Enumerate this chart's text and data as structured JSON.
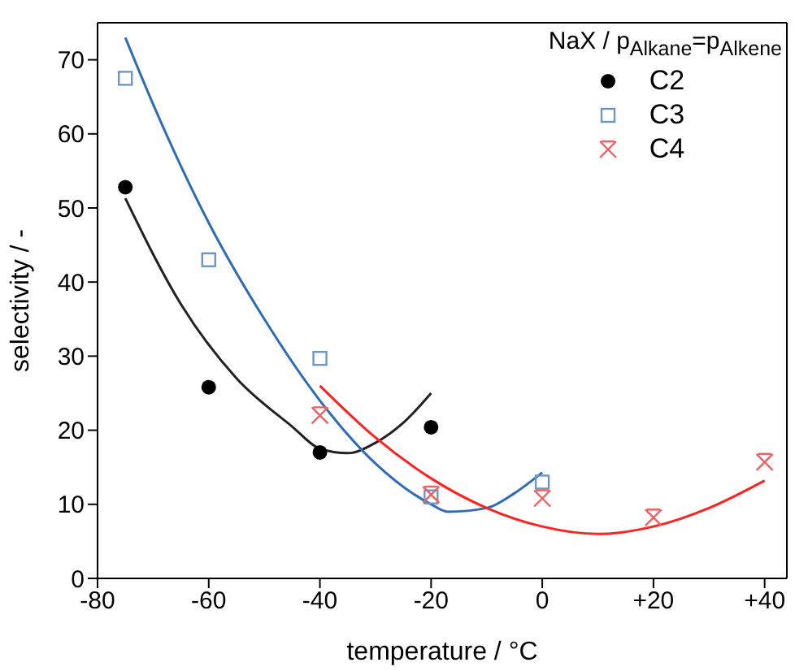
{
  "chart_data": {
    "type": "scatter",
    "xlabel": "temperature / °C",
    "ylabel": "selectivity / -",
    "legend_title": "NaX / p$_{Alkane}$=p$_{Alkene}$",
    "legend": "top right",
    "grid": false,
    "xlim": [
      -80,
      44
    ],
    "xticks": [
      -80,
      -60,
      -40,
      -20,
      0,
      {
        "value": 20,
        "label": "+20"
      },
      {
        "value": 40,
        "label": "+40"
      }
    ],
    "ylim": [
      0,
      75
    ],
    "yticks": [
      0,
      10,
      20,
      30,
      40,
      50,
      60,
      70
    ],
    "series": [
      {
        "name": "C2",
        "marker": "circle",
        "color": "#000000",
        "x": [
          -75,
          -60,
          -40,
          -20
        ],
        "values": [
          52.8,
          25.8,
          17,
          20.4
        ]
      },
      {
        "name": "C3",
        "marker": "square",
        "color": "#6d95c8",
        "x": [
          -75,
          -60,
          -40,
          -20,
          0
        ],
        "values": [
          67.5,
          43,
          29.7,
          11,
          13
        ]
      },
      {
        "name": "C4",
        "marker": "cross",
        "color": "#f06060",
        "x": [
          -40,
          -20,
          0,
          20,
          40
        ],
        "values": [
          22,
          11.3,
          10.8,
          8.2,
          15.7
        ]
      },
      {
        "type": "line",
        "marker": "none",
        "color": "#222222",
        "x": [
          -75,
          -65,
          -55,
          -45,
          -40,
          -35,
          -30,
          -25,
          -20
        ],
        "values": [
          51.3,
          37,
          27,
          20.5,
          17.5,
          16.9,
          18.3,
          21,
          25
        ]
      },
      {
        "type": "line",
        "marker": "none",
        "color": "#2e6db5",
        "x": [
          -75,
          -70,
          -60,
          -50,
          -40,
          -30,
          -20,
          -17,
          -10,
          -5,
          0
        ],
        "values": [
          73,
          64,
          48,
          35,
          24,
          15.5,
          10,
          9,
          9.5,
          11.5,
          14.3
        ]
      },
      {
        "type": "line",
        "marker": "none",
        "color": "#ff2020",
        "x": [
          -40,
          -30,
          -20,
          -10,
          0,
          10,
          20,
          30,
          40
        ],
        "values": [
          26,
          19,
          13.5,
          9.5,
          7,
          6,
          7,
          9.5,
          13.2
        ]
      }
    ]
  }
}
